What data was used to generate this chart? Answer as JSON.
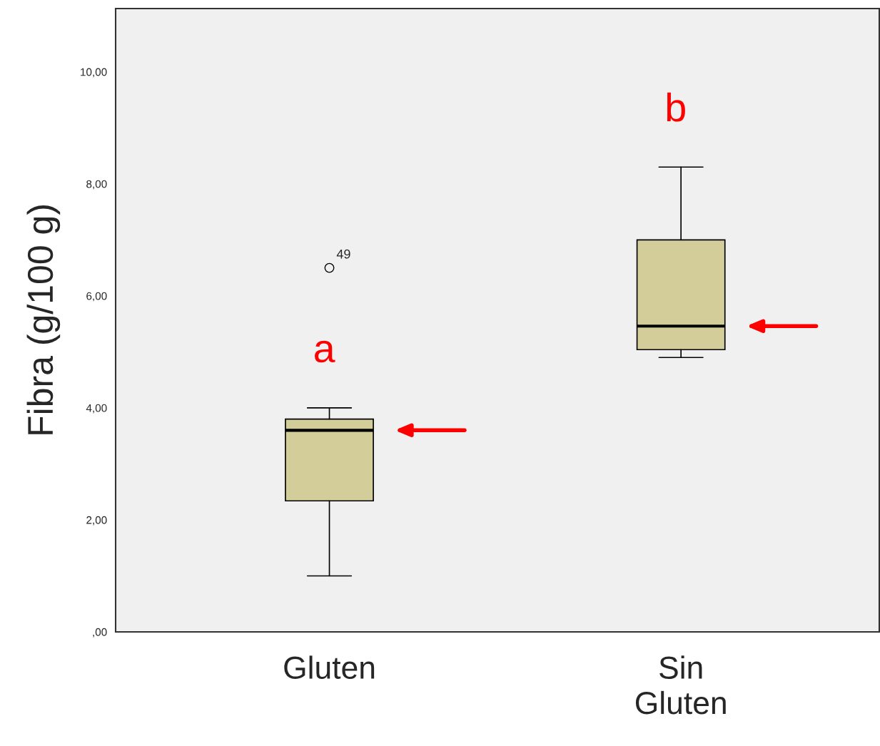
{
  "chart_data": {
    "type": "box",
    "ylabel": "Fibra (g/100 g)",
    "categories": [
      "Gluten",
      "Sin\nGluten"
    ],
    "boxes": [
      {
        "low": 1.0,
        "q1": 2.34,
        "median": 3.6,
        "q3": 3.8,
        "high": 4.0,
        "outliers": [
          6.5
        ]
      },
      {
        "low": 4.9,
        "q1": 5.04,
        "median": 5.46,
        "q3": 7.0,
        "high": 8.3
      }
    ],
    "color": "#d3ce99",
    "ylim": [
      0,
      11.13
    ],
    "yticks": [
      {
        "value": 0,
        "label": ",00"
      },
      {
        "value": 2,
        "label": "2,00"
      },
      {
        "value": 4,
        "label": "4,00"
      },
      {
        "value": 6,
        "label": "6,00"
      },
      {
        "value": 8,
        "label": "8,00"
      },
      {
        "value": 10,
        "label": "10,00"
      }
    ],
    "annotations": [
      "a",
      "b",
      "49"
    ],
    "grid": false
  }
}
